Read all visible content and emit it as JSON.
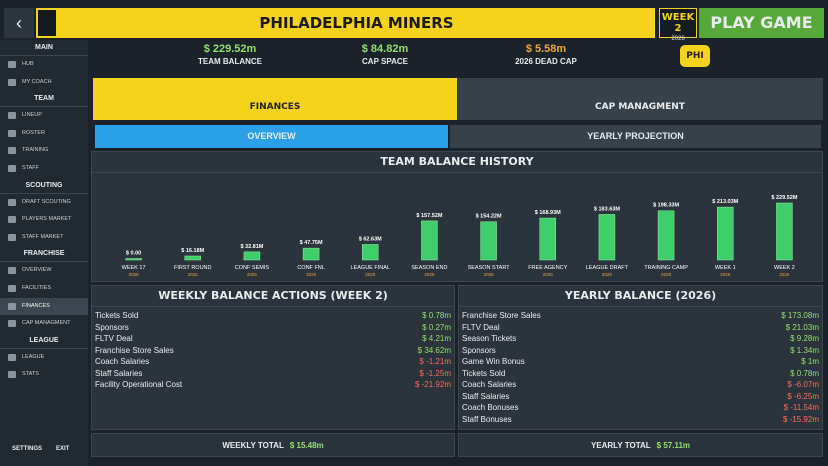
{
  "header": {
    "team": "PHILADELPHIA MINERS",
    "week": "WEEK 2",
    "year": "2026",
    "play": "PLAY GAME"
  },
  "sidebar": [
    {
      "title": "MAIN",
      "items": [
        "HUB",
        "MY COACH"
      ]
    },
    {
      "title": "TEAM",
      "items": [
        "LINEUP",
        "ROSTER",
        "TRAINING",
        "STAFF"
      ]
    },
    {
      "title": "SCOUTING",
      "items": [
        "DRAFT SCOUTING",
        "PLAYERS MARKET",
        "STAFF MARKET"
      ]
    },
    {
      "title": "FRANCHISE",
      "items": [
        "OVERVIEW",
        "FACILITIES",
        "FINANCES",
        "CAP MANAGMENT"
      ]
    },
    {
      "title": "LEAGUE",
      "items": [
        "LEAGUE",
        "STATS"
      ]
    }
  ],
  "footer_buttons": [
    "SETTINGS",
    "EXIT"
  ],
  "stats": [
    {
      "value": "$ 229.52m",
      "label": "TEAM BALANCE"
    },
    {
      "value": "$ 84.82m",
      "label": "CAP SPACE"
    },
    {
      "value": "$ 5.58m",
      "label": "2026 DEAD CAP"
    }
  ],
  "badge": "PHI",
  "tabs": [
    "FINANCES",
    "CAP MANAGMENT"
  ],
  "subtabs": [
    "OVERVIEW",
    "YEARLY PROJECTION"
  ],
  "balance_history": {
    "type": "bar",
    "title": "TEAM BALANCE HISTORY",
    "categories": [
      "WEEK 17",
      "FIRST ROUND",
      "CONF SEMIS",
      "CONF FNL",
      "LEAGUE FINAL",
      "SEASON END",
      "SEASON START",
      "FREE AGENCY",
      "LEAGUE DRAFT",
      "TRAINING CAMP",
      "WEEK 1",
      "WEEK 2"
    ],
    "years": [
      "2025",
      "2025",
      "2025",
      "2025",
      "2025",
      "2025",
      "2026",
      "2026",
      "2026",
      "2026",
      "2026",
      "2026"
    ],
    "values": [
      0,
      16.18,
      32.81,
      47.75,
      62.63,
      157.52,
      154.22,
      168.93,
      183.63,
      198.33,
      213.03,
      229.52
    ],
    "value_labels": [
      "$ 0.00",
      "$ 16.18M",
      "$ 32.81M",
      "$ 47.75M",
      "$ 62.63M",
      "$ 157.52M",
      "$ 154.22M",
      "$ 168.93M",
      "$ 183.63M",
      "$ 198.33M",
      "$ 213.03M",
      "$ 229.52M"
    ]
  },
  "weekly": {
    "title": "WEEKLY BALANCE ACTIONS (WEEK 2)",
    "rows": [
      [
        "Tickets Sold",
        "$ 0.78m"
      ],
      [
        "Sponsors",
        "$ 0.27m"
      ],
      [
        "FLTV Deal",
        "$ 4.21m"
      ],
      [
        "Franchise Store Sales",
        "$ 34.62m"
      ],
      [
        "Coach Salaries",
        "$ -1.21m"
      ],
      [
        "Staff Salaries",
        "$ -1.25m"
      ],
      [
        "Facility Operational Cost",
        "$ -21.92m"
      ]
    ],
    "total_label": "WEEKLY TOTAL",
    "total": "$ 15.48m"
  },
  "yearly": {
    "title": "YEARLY BALANCE (2026)",
    "rows": [
      [
        "Franchise Store Sales",
        "$ 173.08m"
      ],
      [
        "FLTV Deal",
        "$ 21.03m"
      ],
      [
        "Season Tickets",
        "$ 9.28m"
      ],
      [
        "Sponsors",
        "$ 1.34m"
      ],
      [
        "Game Win Bonus",
        "$ 1m"
      ],
      [
        "Tickets Sold",
        "$ 0.78m"
      ],
      [
        "Coach Salaries",
        "$ -6.07m"
      ],
      [
        "Staff Salaries",
        "$ -6.25m"
      ],
      [
        "Coach Bonuses",
        "$ -11.54m"
      ],
      [
        "Staff Bonuses",
        "$ -15.92m"
      ]
    ],
    "total_label": "YEARLY TOTAL",
    "total": "$ 57.11m"
  }
}
